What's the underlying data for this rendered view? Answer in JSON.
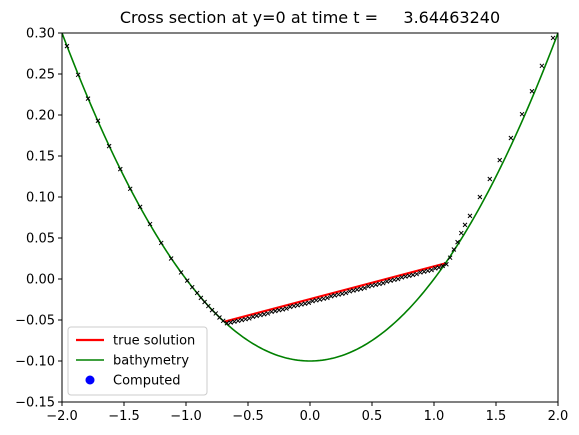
{
  "chart_data": {
    "type": "line",
    "title": "Cross section at y=0 at time t =     3.64463240",
    "xlabel": "",
    "ylabel": "",
    "xlim": [
      -2.0,
      2.0
    ],
    "ylim": [
      -0.15,
      0.3
    ],
    "xticks": [
      -2.0,
      -1.5,
      -1.0,
      -0.5,
      0.0,
      0.5,
      1.0,
      1.5,
      2.0
    ],
    "xtick_labels": [
      "−2.0",
      "−1.5",
      "−1.0",
      "−0.5",
      "0.0",
      "0.5",
      "1.0",
      "1.5",
      "2.0"
    ],
    "yticks": [
      -0.15,
      -0.1,
      -0.05,
      0.0,
      0.05,
      0.1,
      0.15,
      0.2,
      0.25,
      0.3
    ],
    "ytick_labels": [
      "−0.15",
      "−0.10",
      "−0.05",
      "0.00",
      "0.05",
      "0.10",
      "0.15",
      "0.20",
      "0.25",
      "0.30"
    ],
    "grid": false,
    "legend_position": "lower-left",
    "series": [
      {
        "name": "true solution",
        "kind": "line",
        "color": "#ff0000",
        "x": [
          -0.69,
          1.09
        ],
        "y": [
          -0.052,
          0.019
        ]
      },
      {
        "name": "bathymetry",
        "kind": "line",
        "color": "#008000",
        "function": "y = 0.1*x^2 - 0.1",
        "x": [
          -2.0,
          -1.5,
          -1.0,
          -0.5,
          0.0,
          0.5,
          1.0,
          1.5,
          2.0
        ],
        "y": [
          0.3,
          0.125,
          0.0,
          -0.075,
          -0.1,
          -0.075,
          0.0,
          0.125,
          0.3
        ]
      },
      {
        "name": "Computed",
        "kind": "scatter",
        "color": "#0000ff",
        "marker_color": "#000000",
        "x": [
          -1.96,
          -1.87,
          -1.79,
          -1.71,
          -1.62,
          -1.53,
          -1.45,
          -1.37,
          -1.29,
          -1.2,
          -1.12,
          -1.04,
          -0.99,
          -0.95,
          -0.91,
          -0.88,
          -0.85,
          -0.82,
          -0.79,
          -0.76,
          -0.73,
          -0.7,
          -0.67,
          -0.64,
          -0.61,
          -0.58,
          -0.55,
          -0.52,
          -0.49,
          -0.46,
          -0.43,
          -0.4,
          -0.37,
          -0.34,
          -0.31,
          -0.28,
          -0.25,
          -0.22,
          -0.19,
          -0.16,
          -0.13,
          -0.1,
          -0.07,
          -0.04,
          -0.01,
          0.02,
          0.05,
          0.08,
          0.11,
          0.14,
          0.17,
          0.2,
          0.23,
          0.26,
          0.29,
          0.32,
          0.35,
          0.38,
          0.41,
          0.44,
          0.47,
          0.5,
          0.53,
          0.56,
          0.59,
          0.62,
          0.65,
          0.68,
          0.71,
          0.74,
          0.77,
          0.8,
          0.83,
          0.86,
          0.89,
          0.92,
          0.95,
          0.98,
          1.01,
          1.04,
          1.07,
          1.1,
          1.13,
          1.16,
          1.19,
          1.22,
          1.25,
          1.29,
          1.37,
          1.45,
          1.53,
          1.62,
          1.71,
          1.79,
          1.87,
          1.96
        ],
        "y": [
          0.284,
          0.249,
          0.22,
          0.193,
          0.162,
          0.134,
          0.11,
          0.088,
          0.067,
          0.044,
          0.025,
          0.008,
          -0.002,
          -0.01,
          -0.017,
          -0.023,
          -0.028,
          -0.033,
          -0.038,
          -0.042,
          -0.047,
          -0.051,
          -0.054,
          -0.053,
          -0.052,
          -0.051,
          -0.05,
          -0.049,
          -0.048,
          -0.046,
          -0.045,
          -0.044,
          -0.043,
          -0.042,
          -0.04,
          -0.039,
          -0.038,
          -0.037,
          -0.036,
          -0.034,
          -0.033,
          -0.032,
          -0.031,
          -0.03,
          -0.029,
          -0.027,
          -0.026,
          -0.025,
          -0.024,
          -0.023,
          -0.021,
          -0.02,
          -0.019,
          -0.018,
          -0.017,
          -0.015,
          -0.014,
          -0.013,
          -0.012,
          -0.011,
          -0.009,
          -0.008,
          -0.007,
          -0.006,
          -0.005,
          -0.003,
          -0.002,
          -0.001,
          0.0,
          0.002,
          0.003,
          0.004,
          0.005,
          0.006,
          0.008,
          0.009,
          0.01,
          0.011,
          0.013,
          0.014,
          0.016,
          0.018,
          0.026,
          0.036,
          0.045,
          0.056,
          0.066,
          0.077,
          0.1,
          0.122,
          0.145,
          0.172,
          0.201,
          0.229,
          0.26,
          0.294
        ]
      }
    ]
  }
}
